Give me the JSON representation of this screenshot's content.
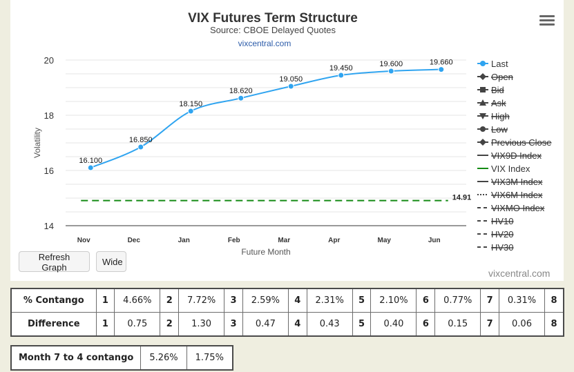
{
  "chart_data": {
    "type": "line",
    "title": "VIX Futures Term Structure",
    "subtitle": "Source: CBOE Delayed Quotes",
    "source_link": "vixcentral.com",
    "categories": [
      "Nov",
      "Dec",
      "Jan",
      "Feb",
      "Mar",
      "Apr",
      "May",
      "Jun"
    ],
    "series": [
      {
        "name": "Last",
        "values": [
          16.1,
          16.85,
          18.15,
          18.62,
          19.05,
          19.45,
          19.6,
          19.66
        ],
        "data_labels": [
          "16.100",
          "16.850",
          "18.150",
          "18.620",
          "19.050",
          "19.450",
          "19.600",
          "19.660"
        ],
        "color": "#2fa4f0",
        "visible": true
      },
      {
        "name": "VIX Index",
        "values": [
          14.91,
          14.91,
          14.91,
          14.91,
          14.91,
          14.91,
          14.91,
          14.91
        ],
        "end_label": "14.91",
        "color": "#138a13",
        "visible": true
      }
    ],
    "xlabel": "Future Month",
    "ylabel": "Volatility",
    "ylim": [
      14,
      20
    ],
    "yticks": [
      "20",
      "18",
      "16",
      "14"
    ],
    "grid": true,
    "legend_position": "right",
    "legend": [
      {
        "name": "Last",
        "symbol": "circle",
        "visible": true
      },
      {
        "name": "Open",
        "symbol": "diamond",
        "visible": false
      },
      {
        "name": "Bid",
        "symbol": "square",
        "visible": false
      },
      {
        "name": "Ask",
        "symbol": "triangle",
        "visible": false
      },
      {
        "name": "High",
        "symbol": "triangle-down",
        "visible": false
      },
      {
        "name": "Low",
        "symbol": "circle",
        "visible": false
      },
      {
        "name": "Previous Close",
        "symbol": "diamond",
        "visible": false
      },
      {
        "name": "VIX9D Index",
        "symbol": "line",
        "visible": false
      },
      {
        "name": "VIX Index",
        "symbol": "line",
        "visible": true,
        "color": "#138a13"
      },
      {
        "name": "VIX3M Index",
        "symbol": "line",
        "visible": false
      },
      {
        "name": "VIX6M Index",
        "symbol": "dotted",
        "visible": false
      },
      {
        "name": "VIXMO Index",
        "symbol": "dashed",
        "visible": false
      },
      {
        "name": "HV10",
        "symbol": "dashed",
        "visible": false
      },
      {
        "name": "HV20",
        "symbol": "dashed",
        "visible": false
      },
      {
        "name": "HV30",
        "symbol": "dashed",
        "visible": false
      }
    ]
  },
  "buttons": {
    "refresh": "Refresh Graph",
    "wide": "Wide"
  },
  "credit": "vixcentral.com",
  "contango_table": {
    "rows": [
      {
        "label": "% Contango",
        "cells": [
          [
            "1",
            "4.66%"
          ],
          [
            "2",
            "7.72%"
          ],
          [
            "3",
            "2.59%"
          ],
          [
            "4",
            "2.31%"
          ],
          [
            "5",
            "2.10%"
          ],
          [
            "6",
            "0.77%"
          ],
          [
            "7",
            "0.31%"
          ]
        ],
        "last_index": "8"
      },
      {
        "label": "Difference",
        "cells": [
          [
            "1",
            "0.75"
          ],
          [
            "2",
            "1.30"
          ],
          [
            "3",
            "0.47"
          ],
          [
            "4",
            "0.43"
          ],
          [
            "5",
            "0.40"
          ],
          [
            "6",
            "0.15"
          ],
          [
            "7",
            "0.06"
          ]
        ],
        "last_index": "8"
      }
    ]
  },
  "month_table": {
    "label": "Month 7 to 4 contango",
    "values": [
      "5.26%",
      "1.75%"
    ]
  }
}
